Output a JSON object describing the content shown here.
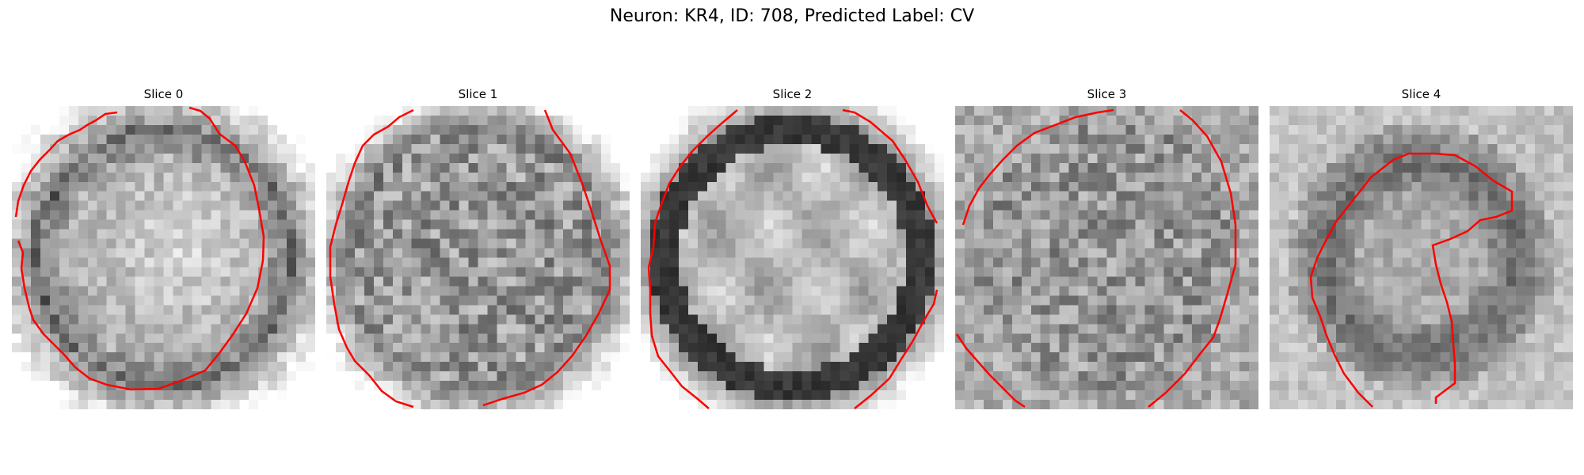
{
  "figure": {
    "title": "Neuron: KR4, ID: 708, Predicted Label: CV",
    "contour_color": "#ff0000",
    "colormap": "gray"
  },
  "panels": [
    {
      "title": "Slice 0"
    },
    {
      "title": "Slice 1"
    },
    {
      "title": "Slice 2"
    },
    {
      "title": "Slice 3"
    },
    {
      "title": "Slice 4"
    }
  ]
}
